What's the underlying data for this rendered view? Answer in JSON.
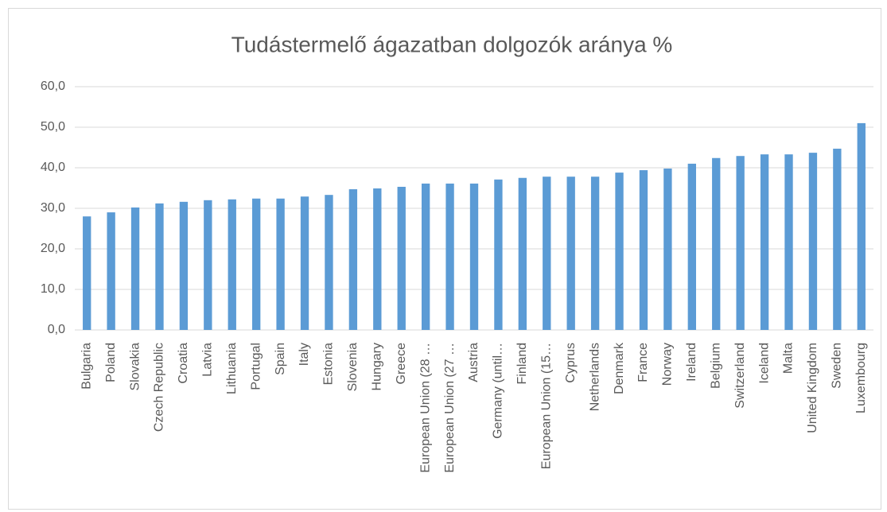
{
  "chart_data": {
    "type": "bar",
    "title": "Tudástermelő ágazatban dolgozók aránya %",
    "categories": [
      "Bulgaria",
      "Poland",
      "Slovakia",
      "Czech Republic",
      "Croatia",
      "Latvia",
      "Lithuania",
      "Portugal",
      "Spain",
      "Italy",
      "Estonia",
      "Slovenia",
      "Hungary",
      "Greece",
      "European Union (28 …",
      "European Union (27 …",
      "Austria",
      "Germany (until…",
      "Finland",
      "European Union (15…",
      "Cyprus",
      "Netherlands",
      "Denmark",
      "France",
      "Norway",
      "Ireland",
      "Belgium",
      "Switzerland",
      "Iceland",
      "Malta",
      "United Kingdom",
      "Sweden",
      "Luxembourg"
    ],
    "values": [
      28.0,
      29.0,
      30.2,
      31.2,
      31.6,
      32.0,
      32.2,
      32.4,
      32.4,
      32.9,
      33.3,
      34.7,
      34.9,
      35.3,
      36.1,
      36.1,
      36.1,
      37.1,
      37.5,
      37.8,
      37.8,
      37.8,
      38.8,
      39.4,
      39.8,
      41.0,
      42.4,
      42.9,
      43.3,
      43.3,
      43.7,
      44.7,
      51.0
    ],
    "color": "#5b9bd5",
    "ylim": [
      0,
      60
    ],
    "yticks": [
      {
        "value": 0,
        "label": "0,0"
      },
      {
        "value": 10,
        "label": "10,0"
      },
      {
        "value": 20,
        "label": "20,0"
      },
      {
        "value": 30,
        "label": "30,0"
      },
      {
        "value": 40,
        "label": "40,0"
      },
      {
        "value": 50,
        "label": "50,0"
      },
      {
        "value": 60,
        "label": "60,0"
      }
    ],
    "grid": true
  }
}
